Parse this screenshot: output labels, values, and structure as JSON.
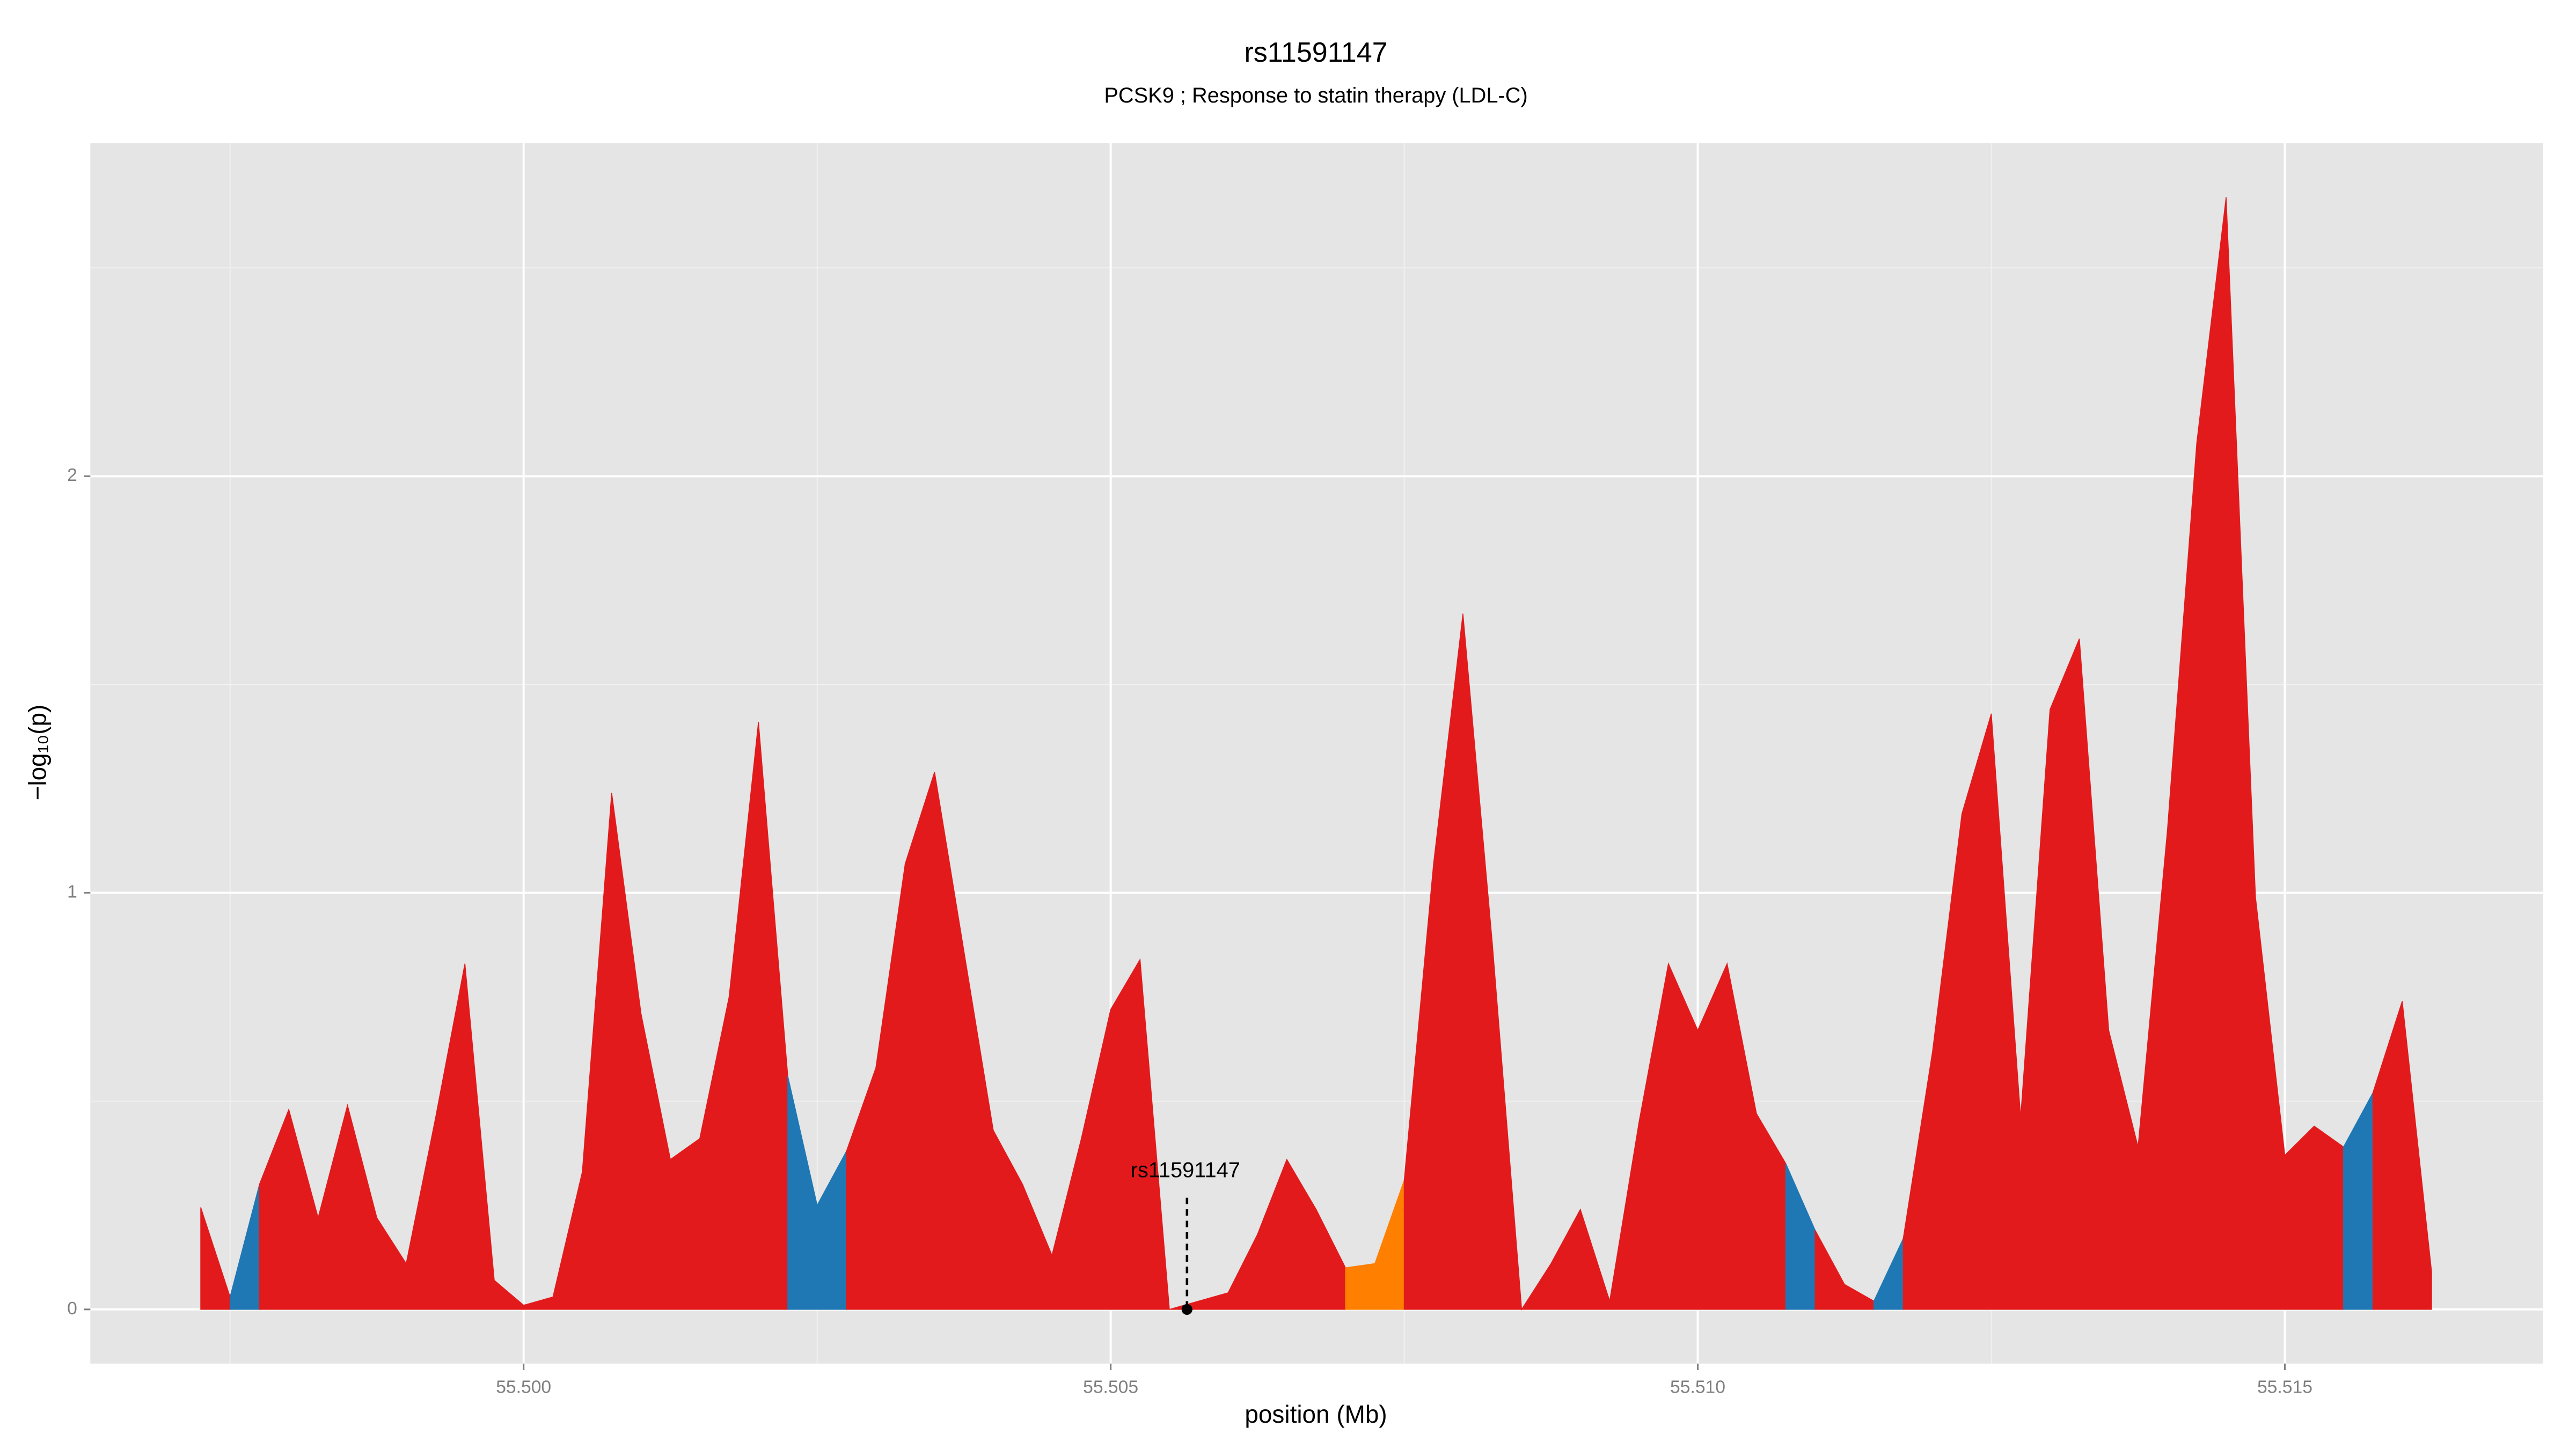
{
  "chart_data": {
    "type": "area",
    "title": "rs11591147",
    "subtitle": "PCSK9 ; Response to statin therapy (LDL-C)",
    "x_label": "position (Mb)",
    "y_label": "−log₁₀(p)",
    "xlim": [
      55.49631,
      55.5172
    ],
    "ylim": [
      -0.13,
      2.8
    ],
    "xticks": [
      {
        "value": 55.5,
        "label": "55.500"
      },
      {
        "value": 55.505,
        "label": "55.505"
      },
      {
        "value": 55.51,
        "label": "55.510"
      },
      {
        "value": 55.515,
        "label": "55.515"
      }
    ],
    "yticks": [
      0,
      1,
      2
    ],
    "grid": true,
    "series": [
      {
        "color": "#e31a1c",
        "x": [
          55.49725,
          55.4975
        ],
        "values": [
          0.245,
          0.03
        ]
      },
      {
        "color": "#1f78b4",
        "x": [
          55.4975,
          55.49775
        ],
        "values": [
          0.03,
          0.3
        ]
      },
      {
        "color": "#e31a1c",
        "x": [
          55.49775,
          55.498,
          55.49825,
          55.4985,
          55.49875,
          55.499,
          55.49925,
          55.4995,
          55.49975,
          55.5,
          55.50025,
          55.5005,
          55.50075,
          55.501,
          55.50125,
          55.5015,
          55.50175,
          55.502,
          55.50225
        ],
        "values": [
          0.3,
          0.48,
          0.22,
          0.49,
          0.22,
          0.11,
          0.46,
          0.83,
          0.07,
          0.01,
          0.03,
          0.33,
          1.24,
          0.71,
          0.36,
          0.41,
          0.75,
          1.41,
          0.56
        ]
      },
      {
        "color": "#1f78b4",
        "x": [
          55.50225,
          55.5025,
          55.50275
        ],
        "values": [
          0.56,
          0.25,
          0.38
        ]
      },
      {
        "color": "#e31a1c",
        "x": [
          55.50275,
          55.503,
          55.50325,
          55.5035,
          55.50375,
          55.504,
          55.50425,
          55.5045,
          55.50475,
          55.505,
          55.50525,
          55.5055,
          55.50575,
          55.506,
          55.50625,
          55.5065,
          55.50675,
          55.507
        ],
        "values": [
          0.38,
          0.58,
          1.07,
          1.29,
          0.86,
          0.43,
          0.3,
          0.13,
          0.41,
          0.72,
          0.84,
          0,
          0.02,
          0.04,
          0.18,
          0.36,
          0.24,
          0.1
        ]
      },
      {
        "color": "#ff7f00",
        "x": [
          55.507,
          55.50725,
          55.5075
        ],
        "values": [
          0.1,
          0.11,
          0.31
        ]
      },
      {
        "color": "#e31a1c",
        "x": [
          55.5075,
          55.50775,
          55.508,
          55.50825,
          55.5085,
          55.50875,
          55.509,
          55.50925,
          55.5095,
          55.50975,
          55.51,
          55.51025,
          55.5105,
          55.51075
        ],
        "values": [
          0.31,
          1.07,
          1.67,
          0.88,
          0,
          0.11,
          0.24,
          0.02,
          0.45,
          0.83,
          0.67,
          0.83,
          0.47,
          0.35
        ]
      },
      {
        "color": "#1f78b4",
        "x": [
          55.51075,
          55.511
        ],
        "values": [
          0.35,
          0.19
        ]
      },
      {
        "color": "#e31a1c",
        "x": [
          55.511,
          55.51125,
          55.5115
        ],
        "values": [
          0.19,
          0.06,
          0.02
        ]
      },
      {
        "color": "#1f78b4",
        "x": [
          55.5115,
          55.51175
        ],
        "values": [
          0.02,
          0.17
        ]
      },
      {
        "color": "#e31a1c",
        "x": [
          55.51175,
          55.512,
          55.51225,
          55.5125,
          55.51275,
          55.513,
          55.51325,
          55.5135,
          55.51375,
          55.514,
          55.51425,
          55.5145,
          55.51475,
          55.515,
          55.51525,
          55.5155
        ],
        "values": [
          0.17,
          0.62,
          1.19,
          1.43,
          0.46,
          1.44,
          1.61,
          0.67,
          0.39,
          1.15,
          2.08,
          2.67,
          0.99,
          0.37,
          0.44,
          0.39
        ]
      },
      {
        "color": "#1f78b4",
        "x": [
          55.5155,
          55.51575
        ],
        "values": [
          0.39,
          0.52
        ]
      },
      {
        "color": "#e31a1c",
        "x": [
          55.51575,
          55.516,
          55.51625
        ],
        "values": [
          0.52,
          0.74,
          0.09
        ]
      }
    ],
    "annotation": {
      "text": "rs11591147",
      "x": 55.50565,
      "y": 0
    }
  }
}
